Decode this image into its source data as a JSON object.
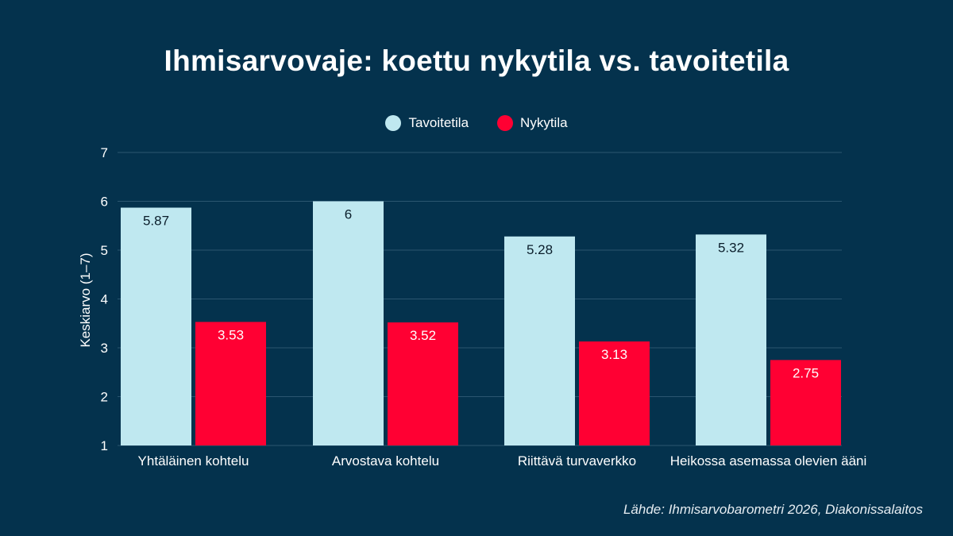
{
  "chart_data": {
    "type": "bar",
    "title": "Ihmisarvovaje: koettu nykytila vs. tavoitetila",
    "ylabel": "Keskiarvo (1–7)",
    "xlabel": "",
    "ylim": [
      1,
      7
    ],
    "yticks": [
      1,
      2,
      3,
      4,
      5,
      6,
      7
    ],
    "grid": true,
    "legend_position": "top-center",
    "categories": [
      "Yhtäläinen kohtelu",
      "Arvostava kohtelu",
      "Riittävä turvaverkko",
      "Heikossa asemassa olevien ääni"
    ],
    "series": [
      {
        "name": "Tavoitetila",
        "color": "#bfe8f0",
        "label_color": "#0b1e2b",
        "values": [
          5.87,
          6,
          5.28,
          5.32
        ]
      },
      {
        "name": "Nykytila",
        "color": "#ff0033",
        "label_color": "#ffffff",
        "values": [
          3.53,
          3.52,
          3.13,
          2.75
        ]
      }
    ],
    "background_color": "#04324d"
  },
  "source": "Lähde: Ihmisarvobarometri 2026, Diakonissalaitos"
}
